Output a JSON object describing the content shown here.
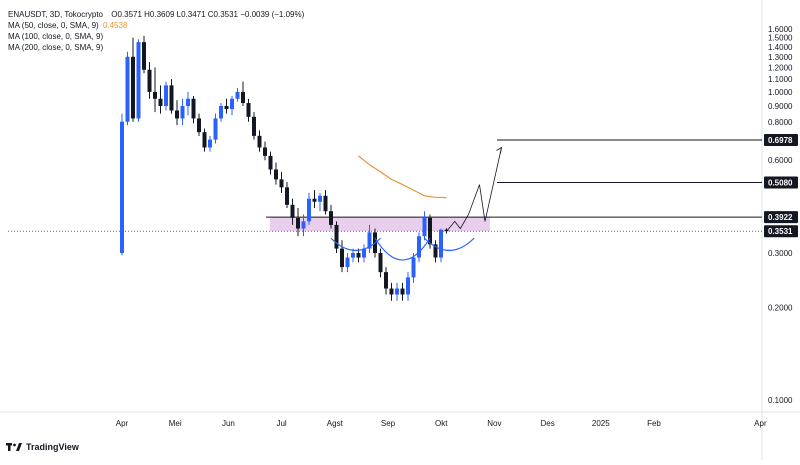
{
  "header": {
    "symbol_line": "ENAUSDT, 3D, Tokocrypto",
    "ohlc": "O0.3571  H0.3609  L0.3471  C0.3531  −0.0039 (−1.09%)",
    "ma_lines": [
      {
        "label": "MA (50, close, 0, SMA, 9)",
        "value": "0.4538"
      },
      {
        "label": "MA (100, close, 0, SMA, 9)",
        "value": ""
      },
      {
        "label": "MA (200, close, 0, SMA, 9)",
        "value": ""
      }
    ]
  },
  "brand": {
    "name": "TradingView",
    "icon": "tradingview-logo-icon"
  },
  "colors": {
    "up": "#2962ff",
    "down": "#131722",
    "ma50": "#e3953a",
    "zone_fill": "#e1bee7",
    "pattern": "#2962ff",
    "label_bg": "#131722",
    "label_text": "#ffffff"
  },
  "chart_data": {
    "type": "candlestick",
    "title": "",
    "xlabel": "",
    "ylabel": "",
    "ylim": [
      0.08,
      1.66
    ],
    "yscale": "log",
    "y_ticks": [
      "1.6000",
      "1.5000",
      "1.4000",
      "1.3000",
      "1.2000",
      "1.1000",
      "1.0000",
      "0.9000",
      "0.8000",
      "0.7000",
      "0.6000",
      "0.5000",
      "0.4000",
      "0.3000",
      "0.2000",
      "0.1000"
    ],
    "x_ticks": [
      "Apr",
      "Mei",
      "Jun",
      "Jul",
      "Agst",
      "Sep",
      "Okt",
      "Nov",
      "Des",
      "2025",
      "Feb",
      "Apr"
    ],
    "x_tick_months": [
      0,
      1,
      2,
      3,
      4,
      5,
      6,
      7,
      8,
      9,
      10,
      12
    ],
    "candles": [
      {
        "o": 0.3,
        "h": 0.85,
        "l": 0.295,
        "c": 0.8
      },
      {
        "o": 0.8,
        "h": 1.35,
        "l": 0.78,
        "c": 1.3
      },
      {
        "o": 1.3,
        "h": 1.5,
        "l": 0.8,
        "c": 0.82
      },
      {
        "o": 0.82,
        "h": 1.48,
        "l": 0.8,
        "c": 1.45
      },
      {
        "o": 1.45,
        "h": 1.52,
        "l": 1.15,
        "c": 1.18
      },
      {
        "o": 1.18,
        "h": 1.25,
        "l": 0.95,
        "c": 1.0
      },
      {
        "o": 1.0,
        "h": 1.2,
        "l": 0.86,
        "c": 0.95
      },
      {
        "o": 0.95,
        "h": 1.05,
        "l": 0.85,
        "c": 0.9
      },
      {
        "o": 0.9,
        "h": 1.08,
        "l": 0.87,
        "c": 1.05
      },
      {
        "o": 1.05,
        "h": 1.1,
        "l": 0.85,
        "c": 0.87
      },
      {
        "o": 0.87,
        "h": 0.94,
        "l": 0.78,
        "c": 0.82
      },
      {
        "o": 0.82,
        "h": 0.95,
        "l": 0.78,
        "c": 0.9
      },
      {
        "o": 0.9,
        "h": 1.0,
        "l": 0.84,
        "c": 0.95
      },
      {
        "o": 0.95,
        "h": 0.97,
        "l": 0.79,
        "c": 0.82
      },
      {
        "o": 0.82,
        "h": 0.85,
        "l": 0.72,
        "c": 0.74
      },
      {
        "o": 0.74,
        "h": 0.76,
        "l": 0.64,
        "c": 0.66
      },
      {
        "o": 0.66,
        "h": 0.72,
        "l": 0.64,
        "c": 0.7
      },
      {
        "o": 0.7,
        "h": 0.85,
        "l": 0.68,
        "c": 0.82
      },
      {
        "o": 0.82,
        "h": 0.92,
        "l": 0.8,
        "c": 0.9
      },
      {
        "o": 0.9,
        "h": 0.95,
        "l": 0.85,
        "c": 0.88
      },
      {
        "o": 0.88,
        "h": 0.97,
        "l": 0.84,
        "c": 0.95
      },
      {
        "o": 0.95,
        "h": 1.03,
        "l": 0.93,
        "c": 1.0
      },
      {
        "o": 1.0,
        "h": 1.08,
        "l": 0.9,
        "c": 0.92
      },
      {
        "o": 0.92,
        "h": 0.95,
        "l": 0.8,
        "c": 0.83
      },
      {
        "o": 0.83,
        "h": 0.86,
        "l": 0.7,
        "c": 0.72
      },
      {
        "o": 0.72,
        "h": 0.75,
        "l": 0.64,
        "c": 0.66
      },
      {
        "o": 0.66,
        "h": 0.69,
        "l": 0.6,
        "c": 0.62
      },
      {
        "o": 0.62,
        "h": 0.64,
        "l": 0.54,
        "c": 0.56
      },
      {
        "o": 0.56,
        "h": 0.59,
        "l": 0.5,
        "c": 0.52
      },
      {
        "o": 0.52,
        "h": 0.55,
        "l": 0.47,
        "c": 0.49
      },
      {
        "o": 0.49,
        "h": 0.51,
        "l": 0.42,
        "c": 0.43
      },
      {
        "o": 0.43,
        "h": 0.45,
        "l": 0.37,
        "c": 0.39
      },
      {
        "o": 0.39,
        "h": 0.42,
        "l": 0.34,
        "c": 0.36
      },
      {
        "o": 0.36,
        "h": 0.4,
        "l": 0.34,
        "c": 0.38
      },
      {
        "o": 0.38,
        "h": 0.47,
        "l": 0.37,
        "c": 0.45
      },
      {
        "o": 0.45,
        "h": 0.48,
        "l": 0.42,
        "c": 0.44
      },
      {
        "o": 0.44,
        "h": 0.47,
        "l": 0.41,
        "c": 0.46
      },
      {
        "o": 0.46,
        "h": 0.48,
        "l": 0.4,
        "c": 0.41
      },
      {
        "o": 0.41,
        "h": 0.43,
        "l": 0.36,
        "c": 0.37
      },
      {
        "o": 0.37,
        "h": 0.38,
        "l": 0.3,
        "c": 0.31
      },
      {
        "o": 0.31,
        "h": 0.33,
        "l": 0.26,
        "c": 0.27
      },
      {
        "o": 0.27,
        "h": 0.3,
        "l": 0.26,
        "c": 0.29
      },
      {
        "o": 0.29,
        "h": 0.31,
        "l": 0.28,
        "c": 0.3
      },
      {
        "o": 0.3,
        "h": 0.31,
        "l": 0.28,
        "c": 0.29
      },
      {
        "o": 0.29,
        "h": 0.32,
        "l": 0.28,
        "c": 0.31
      },
      {
        "o": 0.31,
        "h": 0.37,
        "l": 0.3,
        "c": 0.35
      },
      {
        "o": 0.35,
        "h": 0.36,
        "l": 0.29,
        "c": 0.3
      },
      {
        "o": 0.3,
        "h": 0.31,
        "l": 0.25,
        "c": 0.26
      },
      {
        "o": 0.26,
        "h": 0.27,
        "l": 0.22,
        "c": 0.23
      },
      {
        "o": 0.23,
        "h": 0.24,
        "l": 0.21,
        "c": 0.22
      },
      {
        "o": 0.22,
        "h": 0.24,
        "l": 0.21,
        "c": 0.23
      },
      {
        "o": 0.23,
        "h": 0.24,
        "l": 0.21,
        "c": 0.22
      },
      {
        "o": 0.22,
        "h": 0.26,
        "l": 0.21,
        "c": 0.25
      },
      {
        "o": 0.25,
        "h": 0.3,
        "l": 0.24,
        "c": 0.29
      },
      {
        "o": 0.29,
        "h": 0.35,
        "l": 0.28,
        "c": 0.34
      },
      {
        "o": 0.34,
        "h": 0.41,
        "l": 0.33,
        "c": 0.39
      },
      {
        "o": 0.39,
        "h": 0.4,
        "l": 0.31,
        "c": 0.32
      },
      {
        "o": 0.32,
        "h": 0.33,
        "l": 0.28,
        "c": 0.29
      },
      {
        "o": 0.29,
        "h": 0.36,
        "l": 0.28,
        "c": 0.357
      },
      {
        "o": 0.3571,
        "h": 0.3609,
        "l": 0.3471,
        "c": 0.3531
      }
    ],
    "ma50": [
      0.62,
      0.58,
      0.55,
      0.52,
      0.5,
      0.48,
      0.46,
      0.455,
      0.4538
    ],
    "ma50_start_index": 43,
    "ma50_step": 2,
    "levels": [
      {
        "price": 0.6978,
        "label": "0.6978"
      },
      {
        "price": 0.508,
        "label": "0.5080"
      },
      {
        "price": 0.3922,
        "label": "0.3922"
      }
    ],
    "current_price": {
      "price": 0.3531,
      "label": "0.3531"
    },
    "zone": {
      "low": 0.353,
      "high": 0.392
    },
    "pattern_arcs": [
      {
        "from": 38,
        "to": 47
      },
      {
        "from": 46,
        "to": 56
      },
      {
        "from": 55,
        "to": 64
      }
    ],
    "projection": [
      {
        "t": 59,
        "p": 0.353
      },
      {
        "t": 60.5,
        "p": 0.38
      },
      {
        "t": 61.5,
        "p": 0.36
      },
      {
        "t": 63,
        "p": 0.4
      },
      {
        "t": 65,
        "p": 0.5
      },
      {
        "t": 66,
        "p": 0.38
      },
      {
        "t": 69,
        "p": 0.66
      }
    ]
  }
}
